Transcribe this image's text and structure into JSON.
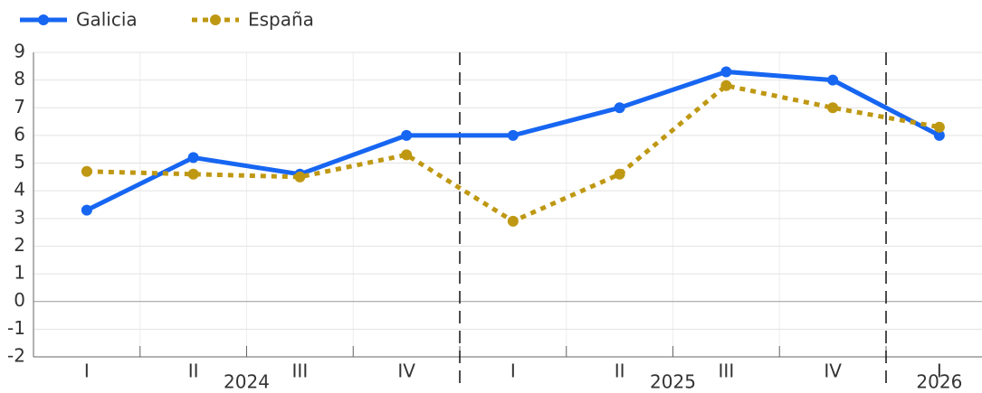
{
  "chart_data": {
    "type": "line",
    "categories": [
      "I",
      "II",
      "III",
      "IV",
      "I",
      "II",
      "III",
      "IV",
      "I"
    ],
    "groups": [
      "2024",
      "2025",
      "2026"
    ],
    "series": [
      {
        "name": "Galicia",
        "color": "#1766f2",
        "style": "solid",
        "values": [
          3.3,
          5.2,
          4.6,
          6.0,
          6.0,
          7.0,
          8.3,
          8.0,
          6.0
        ]
      },
      {
        "name": "España",
        "color": "#bf9813",
        "style": "dotted",
        "values": [
          4.7,
          4.6,
          4.5,
          5.3,
          2.9,
          4.6,
          7.8,
          7.0,
          6.3
        ]
      }
    ],
    "ylim": [
      -2,
      9
    ],
    "yticks": [
      -2,
      -1,
      0,
      1,
      2,
      3,
      4,
      5,
      6,
      7,
      8,
      9
    ],
    "grid": true,
    "legend": "top-left"
  }
}
